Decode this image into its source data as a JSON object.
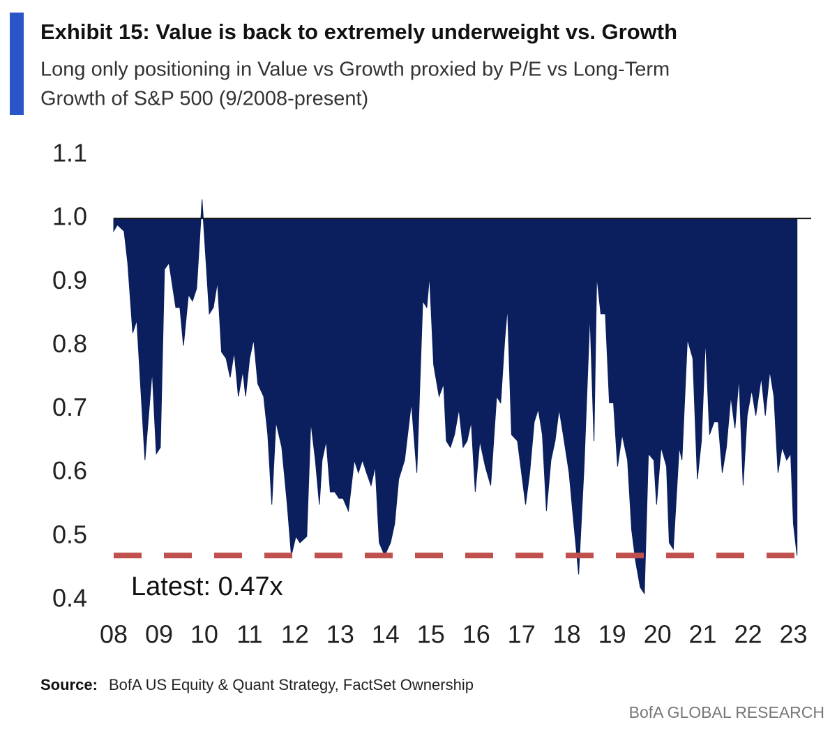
{
  "chart_data": {
    "type": "area",
    "title": "Exhibit 15: Value is back to extremely underweight vs. Growth",
    "subtitle": [
      "Long only positioning in Value vs Growth proxied by P/E vs Long-Term",
      "Growth of S&P 500 (9/2008-present)"
    ],
    "source_label": "Source:",
    "source": "BofA US Equity & Quant Strategy, FactSet Ownership",
    "branding": "BofA GLOBAL RESEARCH",
    "baseline": 1,
    "color": "#0b1f5e",
    "reference_line": {
      "value": 0.47,
      "color": "#c0504d",
      "label": "Latest: 0.47x"
    },
    "xlim": [
      2008,
      2023.1
    ],
    "xticks": [
      {
        "value": 2008,
        "label": "08"
      },
      {
        "value": 2009,
        "label": "09"
      },
      {
        "value": 2010,
        "label": "10"
      },
      {
        "value": 2011,
        "label": "11"
      },
      {
        "value": 2012,
        "label": "12"
      },
      {
        "value": 2013,
        "label": "13"
      },
      {
        "value": 2014,
        "label": "14"
      },
      {
        "value": 2015,
        "label": "15"
      },
      {
        "value": 2016,
        "label": "16"
      },
      {
        "value": 2017,
        "label": "17"
      },
      {
        "value": 2018,
        "label": "18"
      },
      {
        "value": 2019,
        "label": "19"
      },
      {
        "value": 2020,
        "label": "20"
      },
      {
        "value": 2021,
        "label": "21"
      },
      {
        "value": 2022,
        "label": "22"
      },
      {
        "value": 2023,
        "label": "23"
      }
    ],
    "ylim": [
      0.4,
      1.1
    ],
    "yticks": [
      0.4,
      0.5,
      0.6,
      0.7,
      0.8,
      0.9,
      {
        "value": 1,
        "label": "1.0"
      },
      1.1
    ],
    "x": [
      2008.0,
      2008.08,
      2008.23,
      2008.31,
      2008.42,
      2008.51,
      2008.69,
      2008.85,
      2008.94,
      2009.03,
      2009.12,
      2009.22,
      2009.37,
      2009.46,
      2009.54,
      2009.65,
      2009.74,
      2009.83,
      2009.95,
      2010.11,
      2010.2,
      2010.29,
      2010.38,
      2010.48,
      2010.57,
      2010.66,
      2010.75,
      2010.85,
      2010.91,
      2011.0,
      2011.09,
      2011.18,
      2011.31,
      2011.4,
      2011.49,
      2011.58,
      2011.71,
      2011.83,
      2011.92,
      2012.02,
      2012.11,
      2012.26,
      2012.35,
      2012.45,
      2012.54,
      2012.6,
      2012.69,
      2012.78,
      2012.88,
      2012.97,
      2013.06,
      2013.18,
      2013.31,
      2013.4,
      2013.49,
      2013.58,
      2013.68,
      2013.77,
      2013.86,
      2013.98,
      2014.11,
      2014.2,
      2014.29,
      2014.42,
      2014.57,
      2014.69,
      2014.82,
      2014.91,
      2014.97,
      2015.06,
      2015.18,
      2015.28,
      2015.34,
      2015.43,
      2015.52,
      2015.62,
      2015.71,
      2015.8,
      2015.89,
      2015.98,
      2016.08,
      2016.2,
      2016.32,
      2016.45,
      2016.54,
      2016.63,
      2016.69,
      2016.78,
      2016.91,
      2017.0,
      2017.09,
      2017.18,
      2017.28,
      2017.37,
      2017.46,
      2017.55,
      2017.65,
      2017.74,
      2017.83,
      2017.92,
      2018.05,
      2018.14,
      2018.26,
      2018.38,
      2018.51,
      2018.6,
      2018.66,
      2018.75,
      2018.85,
      2018.94,
      2019.03,
      2019.12,
      2019.22,
      2019.34,
      2019.43,
      2019.52,
      2019.62,
      2019.71,
      2019.8,
      2019.92,
      2019.98,
      2020.08,
      2020.2,
      2020.26,
      2020.35,
      2020.48,
      2020.54,
      2020.66,
      2020.78,
      2020.88,
      2020.97,
      2021.06,
      2021.15,
      2021.25,
      2021.34,
      2021.43,
      2021.52,
      2021.62,
      2021.71,
      2021.8,
      2021.89,
      2021.98,
      2022.08,
      2022.17,
      2022.29,
      2022.38,
      2022.48,
      2022.57,
      2022.66,
      2022.75,
      2022.85,
      2022.94,
      2023.0,
      2023.08
    ],
    "values": [
      0.98,
      0.99,
      0.98,
      0.93,
      0.82,
      0.84,
      0.62,
      0.76,
      0.63,
      0.64,
      0.92,
      0.93,
      0.86,
      0.86,
      0.8,
      0.88,
      0.87,
      0.89,
      1.03,
      0.85,
      0.86,
      0.9,
      0.79,
      0.78,
      0.75,
      0.79,
      0.72,
      0.76,
      0.72,
      0.78,
      0.81,
      0.74,
      0.72,
      0.66,
      0.55,
      0.68,
      0.64,
      0.55,
      0.47,
      0.5,
      0.49,
      0.5,
      0.68,
      0.62,
      0.55,
      0.62,
      0.65,
      0.57,
      0.57,
      0.56,
      0.56,
      0.54,
      0.62,
      0.6,
      0.62,
      0.6,
      0.58,
      0.61,
      0.49,
      0.47,
      0.49,
      0.52,
      0.59,
      0.62,
      0.71,
      0.6,
      0.87,
      0.86,
      0.91,
      0.77,
      0.72,
      0.74,
      0.65,
      0.64,
      0.66,
      0.7,
      0.64,
      0.65,
      0.68,
      0.57,
      0.65,
      0.61,
      0.58,
      0.72,
      0.71,
      0.81,
      0.86,
      0.66,
      0.65,
      0.6,
      0.55,
      0.6,
      0.68,
      0.7,
      0.66,
      0.54,
      0.62,
      0.65,
      0.7,
      0.66,
      0.6,
      0.53,
      0.44,
      0.61,
      0.85,
      0.65,
      0.91,
      0.85,
      0.85,
      0.71,
      0.71,
      0.61,
      0.66,
      0.62,
      0.51,
      0.46,
      0.42,
      0.41,
      0.63,
      0.62,
      0.55,
      0.64,
      0.61,
      0.49,
      0.48,
      0.64,
      0.62,
      0.81,
      0.78,
      0.59,
      0.65,
      0.81,
      0.66,
      0.68,
      0.68,
      0.6,
      0.64,
      0.72,
      0.67,
      0.75,
      0.58,
      0.69,
      0.73,
      0.69,
      0.75,
      0.69,
      0.76,
      0.72,
      0.6,
      0.64,
      0.62,
      0.63,
      0.52,
      0.47
    ]
  }
}
